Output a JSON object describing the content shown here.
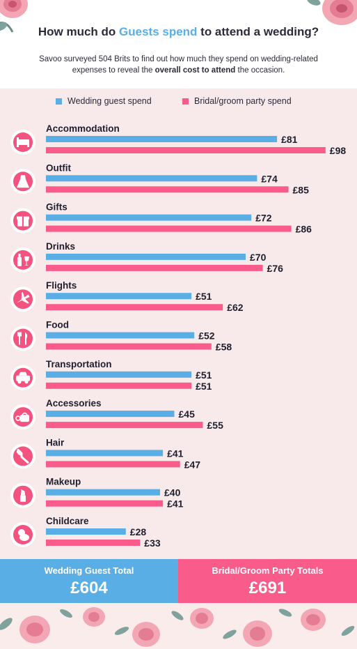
{
  "header": {
    "title_pre": "How much do ",
    "title_highlight": "Guests spend",
    "title_post": " to attend a wedding?",
    "subtitle_pre": "Savoo surveyed 504 Brits to find out  how much they spend on wedding-related expenses to reveal the ",
    "subtitle_bold": "overall cost to attend",
    "subtitle_post": " the occasion."
  },
  "legend": {
    "guest_label": "Wedding guest spend",
    "party_label": "Bridal/groom party spend"
  },
  "colors": {
    "guest": "#5aaee6",
    "party": "#f95c8a",
    "panel": "#f8eaea",
    "icon_pink": "#f4527f"
  },
  "chart_data": {
    "type": "bar",
    "orientation": "horizontal",
    "categories": [
      "Accommodation",
      "Outfit",
      "Gifts",
      "Drinks",
      "Flights",
      "Food",
      "Transportation",
      "Accessories",
      "Hair",
      "Makeup",
      "Childcare"
    ],
    "category_icons": [
      "bed-icon",
      "dress-icon",
      "gift-icon",
      "drinks-icon",
      "plane-icon",
      "cutlery-icon",
      "taxi-icon",
      "accessories-icon",
      "comb-icon",
      "lipstick-icon",
      "childcare-icon"
    ],
    "series": [
      {
        "name": "Wedding guest spend",
        "values": [
          81,
          74,
          72,
          70,
          51,
          52,
          51,
          45,
          41,
          40,
          28
        ]
      },
      {
        "name": "Bridal/groom party spend",
        "values": [
          98,
          85,
          86,
          76,
          62,
          58,
          51,
          55,
          47,
          41,
          33
        ]
      }
    ],
    "value_prefix": "£",
    "xlim": [
      0,
      100
    ]
  },
  "totals": {
    "guest_label": "Wedding Guest Total",
    "guest_value": "£604",
    "party_label": "Bridal/Groom Party Totals",
    "party_value": "£691"
  }
}
